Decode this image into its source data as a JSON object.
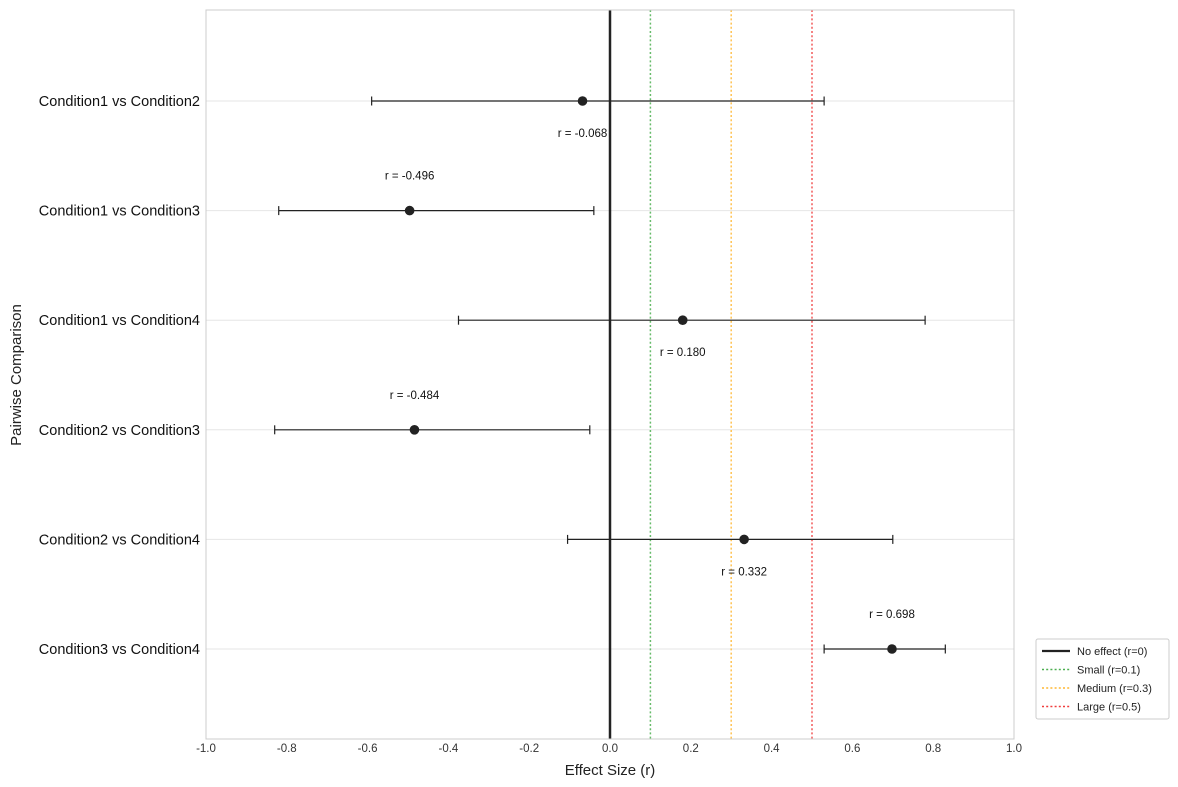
{
  "chart_data": {
    "type": "scatter",
    "xlabel": "Effect Size (r)",
    "ylabel": "Pairwise Comparison",
    "xlim": [
      -1.0,
      1.0
    ],
    "xticks": [
      "-1.0",
      "-0.8",
      "-0.6",
      "-0.4",
      "-0.2",
      "0.0",
      "0.2",
      "0.4",
      "0.6",
      "0.8",
      "1.0"
    ],
    "grid": "on",
    "legend_position": "bottom-right (outside plot)",
    "categories": [
      "Condition1 vs Condition2",
      "Condition1 vs Condition3",
      "Condition1 vs Condition4",
      "Condition2 vs Condition3",
      "Condition2 vs Condition4",
      "Condition3 vs Condition4"
    ],
    "points": [
      {
        "comparison": "Condition1 vs Condition2",
        "r": -0.068,
        "ci_low": -0.59,
        "ci_high": 0.53,
        "label": "r = -0.068",
        "label_side": "below"
      },
      {
        "comparison": "Condition1 vs Condition3",
        "r": -0.496,
        "ci_low": -0.82,
        "ci_high": -0.04,
        "label": "r = -0.496",
        "label_side": "above"
      },
      {
        "comparison": "Condition1 vs Condition4",
        "r": 0.18,
        "ci_low": -0.375,
        "ci_high": 0.78,
        "label": "r = 0.180",
        "label_side": "below"
      },
      {
        "comparison": "Condition2 vs Condition3",
        "r": -0.484,
        "ci_low": -0.83,
        "ci_high": -0.05,
        "label": "r = -0.484",
        "label_side": "above"
      },
      {
        "comparison": "Condition2 vs Condition4",
        "r": 0.332,
        "ci_low": -0.105,
        "ci_high": 0.7,
        "label": "r = 0.332",
        "label_side": "below"
      },
      {
        "comparison": "Condition3 vs Condition4",
        "r": 0.698,
        "ci_low": 0.53,
        "ci_high": 0.83,
        "label": "r = 0.698",
        "label_side": "above"
      }
    ],
    "reference_lines": [
      {
        "name": "No effect (r=0)",
        "x": 0.0,
        "color": "#222222",
        "style": "solid"
      },
      {
        "name": "Small (r=0.1)",
        "x": 0.1,
        "color": "#4caf50",
        "style": "dotted"
      },
      {
        "name": "Medium (r=0.3)",
        "x": 0.3,
        "color": "#ffb732",
        "style": "dotted"
      },
      {
        "name": "Large (r=0.5)",
        "x": 0.5,
        "color": "#f03c3c",
        "style": "dotted"
      }
    ],
    "colors": {
      "point": "#222222",
      "grid": "#e6e6e6",
      "frame": "#cccccc"
    }
  }
}
